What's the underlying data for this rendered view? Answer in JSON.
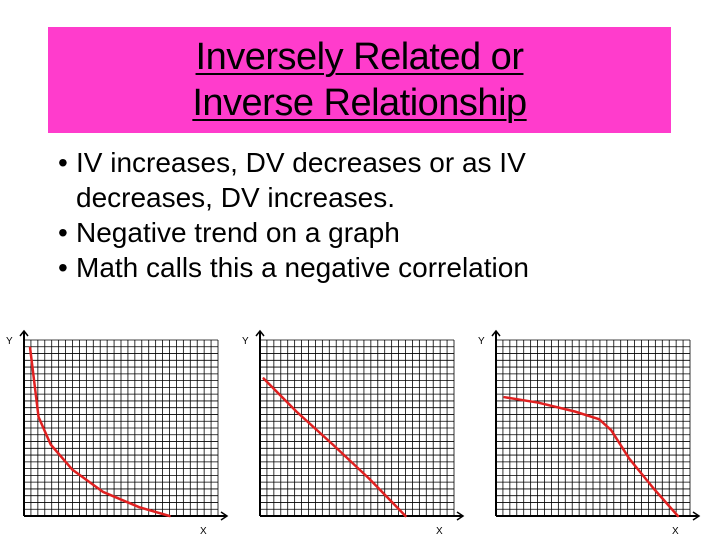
{
  "colors": {
    "title_background": "#ff3ccc",
    "curve": "#e02020",
    "grid": "#000000"
  },
  "title": {
    "line1": "Inversely Related or",
    "line2": "Inverse Relationship"
  },
  "bullets": [
    {
      "line1": "IV increases, DV decreases or as IV",
      "line2": "decreases, DV increases."
    },
    {
      "line1": "Negative trend on a graph"
    },
    {
      "line1": "Math calls this a negative correlation"
    }
  ],
  "bullet_symbol": "•",
  "chart_data": [
    {
      "type": "line",
      "ylabel": "Y",
      "xlabel": "X",
      "xlim": [
        0,
        16
      ],
      "ylim": [
        0,
        16
      ],
      "grid": true,
      "series": [
        {
          "x": [
            0.5,
            1.2,
            2.2,
            4.0,
            6.5,
            9.5,
            12.0
          ],
          "y": [
            15.3,
            9.0,
            6.5,
            4.2,
            2.2,
            0.8,
            0.0
          ]
        }
      ]
    },
    {
      "type": "line",
      "ylabel": "Y",
      "xlabel": "X",
      "xlim": [
        0,
        16
      ],
      "ylim": [
        0,
        16
      ],
      "grid": true,
      "series": [
        {
          "x": [
            0.3,
            3.0,
            6.0,
            9.0,
            12.0
          ],
          "y": [
            12.5,
            9.5,
            6.5,
            3.4,
            0.0
          ]
        }
      ]
    },
    {
      "type": "line",
      "ylabel": "Y",
      "xlabel": "X",
      "xlim": [
        0,
        16
      ],
      "ylim": [
        0,
        16
      ],
      "grid": true,
      "series": [
        {
          "x": [
            0.7,
            3.5,
            6.5,
            8.5,
            9.5,
            11.0,
            13.0,
            15.0
          ],
          "y": [
            10.8,
            10.3,
            9.5,
            8.8,
            7.8,
            5.2,
            2.5,
            0.0
          ]
        }
      ]
    }
  ]
}
